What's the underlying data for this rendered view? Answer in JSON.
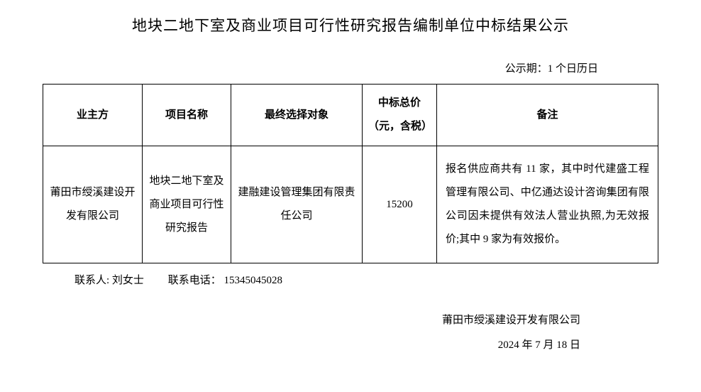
{
  "title": "地块二地下室及商业项目可行性研究报告编制单位中标结果公示",
  "noticePeriod": "公示期：1 个日历日",
  "table": {
    "headers": {
      "owner": "业主方",
      "project": "项目名称",
      "winner": "最终选择对象",
      "price": "中标总价（元，含税）",
      "remark": "备注"
    },
    "row": {
      "owner": "莆田市绶溪建设开发有限公司",
      "project": "地块二地下室及商业项目可行性研究报告",
      "winner": "建融建设管理集团有限责任公司",
      "price": "15200",
      "remark": "报名供应商共有 11 家，其中时代建盛工程管理有限公司、中亿通达设计咨询集团有限公司因未提供有效法人营业执照,为无效报价;其中 9 家为有效报价。"
    }
  },
  "contact": {
    "personLabel": "联系人:",
    "person": "刘女士",
    "phoneLabel": "联系电话：",
    "phone": "15345045028"
  },
  "footer": {
    "company": "莆田市绶溪建设开发有限公司",
    "date": "2024 年 7 月 18 日"
  }
}
